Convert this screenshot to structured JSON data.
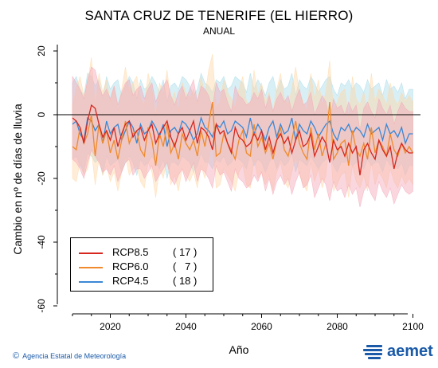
{
  "chart_data": {
    "type": "line",
    "title": "SANTA CRUZ DE TENERIFE (EL HIERRO)",
    "subtitle": "ANUAL",
    "xlabel": "Año",
    "ylabel": "Cambio en nº de días de lluvia",
    "xlim": [
      2006,
      2102
    ],
    "ylim": [
      -62,
      22
    ],
    "xticks": [
      2020,
      2040,
      2060,
      2080,
      2100
    ],
    "yticks": [
      -60,
      -40,
      -20,
      0,
      20
    ],
    "reference_line": 0,
    "legend_position": "bottom-left",
    "series": [
      {
        "name": "RCP8.5",
        "count": "( 17 )",
        "color": "#d7261e",
        "band_color": "#f4a6b8",
        "x_start": 2010,
        "values": [
          -1,
          -2,
          -4,
          -9,
          -2,
          3,
          2,
          -3,
          -7,
          -5,
          -8,
          -4,
          -10,
          -6,
          -3,
          -2,
          -7,
          -5,
          -4,
          -8,
          -5,
          -3,
          -9,
          -6,
          -4,
          -2,
          -7,
          -10,
          -6,
          -4,
          -8,
          -5,
          -2,
          -9,
          -4,
          -5,
          -7,
          -11,
          -3,
          -6,
          -5,
          -9,
          -12,
          -4,
          -7,
          -8,
          -10,
          -9,
          -6,
          -8,
          -5,
          -11,
          -7,
          -12,
          -8,
          -6,
          -9,
          -7,
          -12,
          -8,
          -5,
          -10,
          -9,
          -6,
          -13,
          -10,
          -7,
          -9,
          -15,
          -8,
          -11,
          -10,
          -13,
          -9,
          -12,
          -10,
          -19,
          -11,
          -9,
          -12,
          -14,
          -8,
          -11,
          -13,
          -10,
          -17,
          -12,
          -9,
          -11,
          -12,
          -12
        ],
        "band_low": [
          -14,
          -15,
          -17,
          -20,
          -15,
          -11,
          -13,
          -15,
          -18,
          -17,
          -19,
          -16,
          -21,
          -18,
          -15,
          -14,
          -19,
          -17,
          -17,
          -20,
          -18,
          -16,
          -21,
          -19,
          -17,
          -15,
          -20,
          -22,
          -19,
          -17,
          -21,
          -18,
          -15,
          -21,
          -17,
          -18,
          -20,
          -23,
          -16,
          -19,
          -18,
          -21,
          -24,
          -17,
          -20,
          -21,
          -23,
          -22,
          -19,
          -21,
          -18,
          -24,
          -20,
          -25,
          -21,
          -19,
          -22,
          -20,
          -25,
          -21,
          -18,
          -23,
          -22,
          -19,
          -26,
          -23,
          -20,
          -22,
          -27,
          -21,
          -24,
          -23,
          -26,
          -22,
          -25,
          -23,
          -29,
          -24,
          -22,
          -25,
          -27,
          -21,
          -24,
          -26,
          -23,
          -28,
          -25,
          -22,
          -24,
          -25,
          -24
        ],
        "band_high": [
          12,
          10,
          8,
          5,
          11,
          15,
          14,
          9,
          6,
          8,
          5,
          9,
          3,
          7,
          10,
          11,
          6,
          8,
          9,
          5,
          8,
          10,
          4,
          7,
          9,
          11,
          6,
          3,
          7,
          9,
          5,
          8,
          11,
          4,
          9,
          8,
          6,
          2,
          10,
          7,
          8,
          4,
          1,
          9,
          6,
          5,
          3,
          4,
          7,
          5,
          8,
          2,
          6,
          1,
          5,
          7,
          4,
          6,
          1,
          5,
          8,
          3,
          4,
          7,
          0,
          3,
          6,
          4,
          -2,
          5,
          2,
          3,
          0,
          4,
          1,
          3,
          -5,
          2,
          4,
          1,
          -1,
          5,
          2,
          0,
          3,
          -3,
          1,
          4,
          2,
          1,
          1
        ]
      },
      {
        "name": "RCP6.0",
        "count": "(   7 )",
        "color": "#f08a2c",
        "band_color": "#ffd8a8",
        "x_start": 2010,
        "values": [
          -10,
          -11,
          -4,
          -9,
          -6,
          0,
          -13,
          -3,
          -9,
          -5,
          -12,
          -8,
          -14,
          -8,
          -2,
          -9,
          -6,
          -5,
          -11,
          -13,
          -4,
          -8,
          -16,
          -6,
          -10,
          -3,
          -12,
          -9,
          -14,
          -6,
          -9,
          -11,
          -8,
          -13,
          -5,
          -10,
          -3,
          4,
          -13,
          -12,
          -6,
          -9,
          -11,
          -14,
          -8,
          -5,
          -12,
          -13,
          -3,
          -10,
          -7,
          -12,
          -9,
          -14,
          -8,
          -4,
          -11,
          -13,
          -8,
          -2,
          -9,
          -12,
          -14,
          -4,
          -11,
          -6,
          -13,
          -9,
          4,
          -14,
          -12,
          -9,
          -8,
          -16,
          -5,
          -11,
          -13,
          -9,
          -14,
          -4,
          -12,
          -8,
          -10,
          -13,
          -6,
          -11,
          -13,
          -9,
          -12,
          -10,
          -12
        ],
        "band_low": [
          -20,
          -21,
          -15,
          -19,
          -17,
          -11,
          -22,
          -14,
          -19,
          -16,
          -21,
          -18,
          -24,
          -18,
          -13,
          -19,
          -17,
          -16,
          -21,
          -23,
          -15,
          -18,
          -26,
          -17,
          -20,
          -14,
          -22,
          -19,
          -24,
          -17,
          -19,
          -21,
          -18,
          -23,
          -16,
          -20,
          -14,
          -8,
          -23,
          -22,
          -17,
          -19,
          -21,
          -24,
          -18,
          -16,
          -22,
          -23,
          -14,
          -20,
          -18,
          -22,
          -19,
          -24,
          -18,
          -15,
          -21,
          -23,
          -18,
          -13,
          -19,
          -22,
          -24,
          -15,
          -21,
          -17,
          -23,
          -19,
          -8,
          -24,
          -22,
          -19,
          -18,
          -26,
          -16,
          -21,
          -23,
          -19,
          -24,
          -15,
          -22,
          -18,
          -20,
          -23,
          -17,
          -21,
          -23,
          -19,
          -22,
          -20,
          -22
        ],
        "band_high": [
          3,
          8,
          12,
          6,
          10,
          18,
          2,
          13,
          7,
          11,
          4,
          9,
          1,
          8,
          15,
          7,
          10,
          12,
          5,
          3,
          13,
          8,
          -1,
          10,
          6,
          14,
          4,
          7,
          1,
          10,
          7,
          5,
          8,
          3,
          12,
          6,
          14,
          19,
          2,
          4,
          11,
          7,
          5,
          2,
          8,
          12,
          4,
          3,
          14,
          6,
          10,
          4,
          7,
          1,
          8,
          13,
          5,
          3,
          8,
          15,
          7,
          4,
          1,
          13,
          5,
          11,
          3,
          7,
          17,
          1,
          4,
          7,
          8,
          -1,
          12,
          5,
          3,
          7,
          1,
          13,
          4,
          8,
          6,
          3,
          10,
          5,
          3,
          7,
          4,
          6,
          4
        ]
      },
      {
        "name": "RCP4.5",
        "count": "( 18 )",
        "color": "#3a87d6",
        "band_color": "#a8dbe8",
        "x_start": 2010,
        "values": [
          -3,
          -2,
          -6,
          -8,
          -1,
          -2,
          -5,
          -3,
          -9,
          -2,
          -6,
          -4,
          -3,
          -8,
          -5,
          -2,
          -4,
          -9,
          -3,
          -6,
          -5,
          -2,
          -4,
          -7,
          -3,
          -10,
          -5,
          -4,
          -6,
          -2,
          -3,
          -5,
          -8,
          -6,
          -1,
          -4,
          -5,
          -7,
          -3,
          -4,
          -2,
          -6,
          -5,
          -2,
          -3,
          -4,
          -7,
          -1,
          -6,
          -3,
          -5,
          -8,
          -4,
          -2,
          -7,
          -3,
          -6,
          -5,
          -1,
          -8,
          -3,
          -5,
          -6,
          -2,
          -4,
          -7,
          -5,
          -3,
          -2,
          -6,
          -8,
          -4,
          -5,
          -3,
          -6,
          -4,
          -5,
          -7,
          -3,
          -6,
          -5,
          -4,
          -8,
          -3,
          -6,
          -5,
          -7,
          -4,
          -9,
          -6,
          -6
        ],
        "band_low": [
          -14,
          -13,
          -16,
          -18,
          -12,
          -13,
          -15,
          -14,
          -19,
          -13,
          -16,
          -15,
          -14,
          -18,
          -15,
          -13,
          -15,
          -19,
          -14,
          -16,
          -15,
          -13,
          -15,
          -17,
          -14,
          -20,
          -15,
          -15,
          -16,
          -13,
          -14,
          -15,
          -18,
          -16,
          -12,
          -15,
          -15,
          -17,
          -14,
          -15,
          -13,
          -16,
          -15,
          -13,
          -14,
          -15,
          -17,
          -12,
          -16,
          -14,
          -15,
          -18,
          -15,
          -13,
          -17,
          -14,
          -16,
          -15,
          -12,
          -18,
          -14,
          -15,
          -16,
          -13,
          -15,
          -17,
          -15,
          -14,
          -13,
          -16,
          -18,
          -15,
          -15,
          -14,
          -16,
          -15,
          -15,
          -17,
          -14,
          -16,
          -15,
          -15,
          -18,
          -14,
          -16,
          -15,
          -17,
          -15,
          -19,
          -16,
          -16
        ],
        "band_high": [
          10,
          12,
          8,
          6,
          13,
          12,
          9,
          11,
          5,
          12,
          8,
          10,
          11,
          6,
          9,
          12,
          10,
          5,
          11,
          8,
          9,
          12,
          10,
          7,
          11,
          4,
          9,
          10,
          8,
          12,
          11,
          9,
          6,
          8,
          13,
          10,
          9,
          7,
          11,
          10,
          12,
          8,
          9,
          12,
          11,
          10,
          7,
          13,
          8,
          11,
          9,
          6,
          10,
          12,
          7,
          11,
          8,
          9,
          13,
          6,
          11,
          9,
          8,
          12,
          10,
          7,
          9,
          11,
          12,
          8,
          6,
          10,
          9,
          11,
          8,
          10,
          9,
          7,
          11,
          8,
          9,
          10,
          6,
          11,
          8,
          9,
          7,
          10,
          5,
          8,
          8
        ]
      }
    ]
  },
  "footer": {
    "copyright": "©",
    "agency": "Agencia Estatal de Meteorología",
    "logo_text": "aemet"
  }
}
